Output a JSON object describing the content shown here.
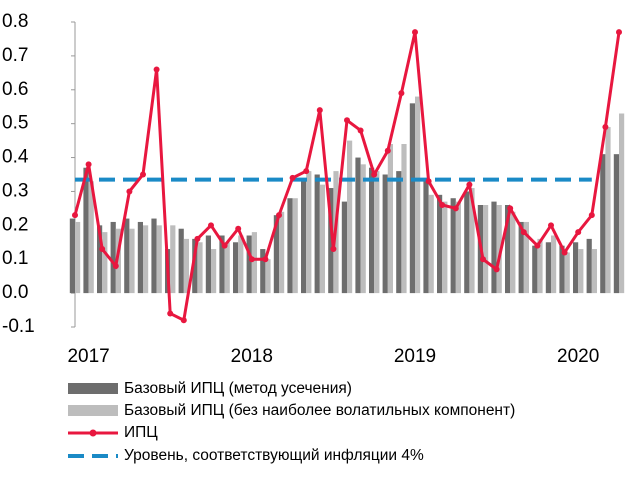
{
  "chart_data": {
    "type": "bar-line",
    "categories": [
      null,
      "2017",
      null,
      null,
      null,
      null,
      null,
      null,
      null,
      null,
      null,
      null,
      null,
      "2018",
      null,
      null,
      null,
      null,
      null,
      null,
      null,
      null,
      null,
      null,
      null,
      "2019",
      null,
      null,
      null,
      null,
      null,
      null,
      null,
      null,
      null,
      null,
      null,
      "2020",
      null,
      null,
      null
    ],
    "series": [
      {
        "name": "Базовый ИПЦ (метод усечения)",
        "color": "#6d6d6d",
        "kind": "bar",
        "values": [
          0.22,
          0.37,
          0.2,
          0.21,
          0.22,
          0.21,
          0.22,
          0.13,
          0.19,
          0.16,
          0.17,
          0.17,
          0.15,
          0.17,
          0.13,
          0.23,
          0.28,
          0.33,
          0.35,
          0.31,
          0.27,
          0.4,
          0.37,
          0.35,
          0.36,
          0.56,
          0.33,
          0.29,
          0.28,
          0.3,
          0.26,
          0.27,
          0.26,
          0.21,
          0.14,
          0.15,
          0.14,
          0.15,
          0.16,
          0.41,
          0.41
        ]
      },
      {
        "name": "Базовый ИПЦ (без наиболее волатильных компонент)",
        "color": "#bdbdbd",
        "kind": "bar",
        "values": [
          0.21,
          0.33,
          0.18,
          0.19,
          0.19,
          0.2,
          0.2,
          0.2,
          0.16,
          0.15,
          0.13,
          0.15,
          0.17,
          0.18,
          0.1,
          0.24,
          0.28,
          0.36,
          0.32,
          0.36,
          0.45,
          0.38,
          0.36,
          0.44,
          0.44,
          0.58,
          0.29,
          0.27,
          0.27,
          0.31,
          0.26,
          0.26,
          0.24,
          0.21,
          0.16,
          0.17,
          0.12,
          0.13,
          0.13,
          0.49,
          0.53
        ]
      },
      {
        "name": "ИПЦ",
        "color": "#e8173f",
        "kind": "line",
        "values": [
          0.23,
          0.38,
          0.13,
          0.08,
          0.3,
          0.35,
          0.66,
          -0.06,
          -0.08,
          0.16,
          0.2,
          0.14,
          0.19,
          0.1,
          0.1,
          0.23,
          0.34,
          0.36,
          0.54,
          0.13,
          0.51,
          0.48,
          0.35,
          0.42,
          0.59,
          0.77,
          0.33,
          0.26,
          0.25,
          0.32,
          0.1,
          0.07,
          0.25,
          0.18,
          0.14,
          0.2,
          0.12,
          0.18,
          0.23,
          0.49,
          0.77
        ]
      }
    ],
    "level": {
      "name": "Уровень, соответствующий инфляции 4%",
      "color": "#1a8ac6",
      "value": 0.335
    },
    "ylim": [
      -0.1,
      0.8
    ],
    "yticks": [
      -0.1,
      {
        "value": 0,
        "label": "0.0"
      },
      0.1,
      0.2,
      0.3,
      0.4,
      0.5,
      0.6,
      0.7,
      0.8
    ]
  }
}
